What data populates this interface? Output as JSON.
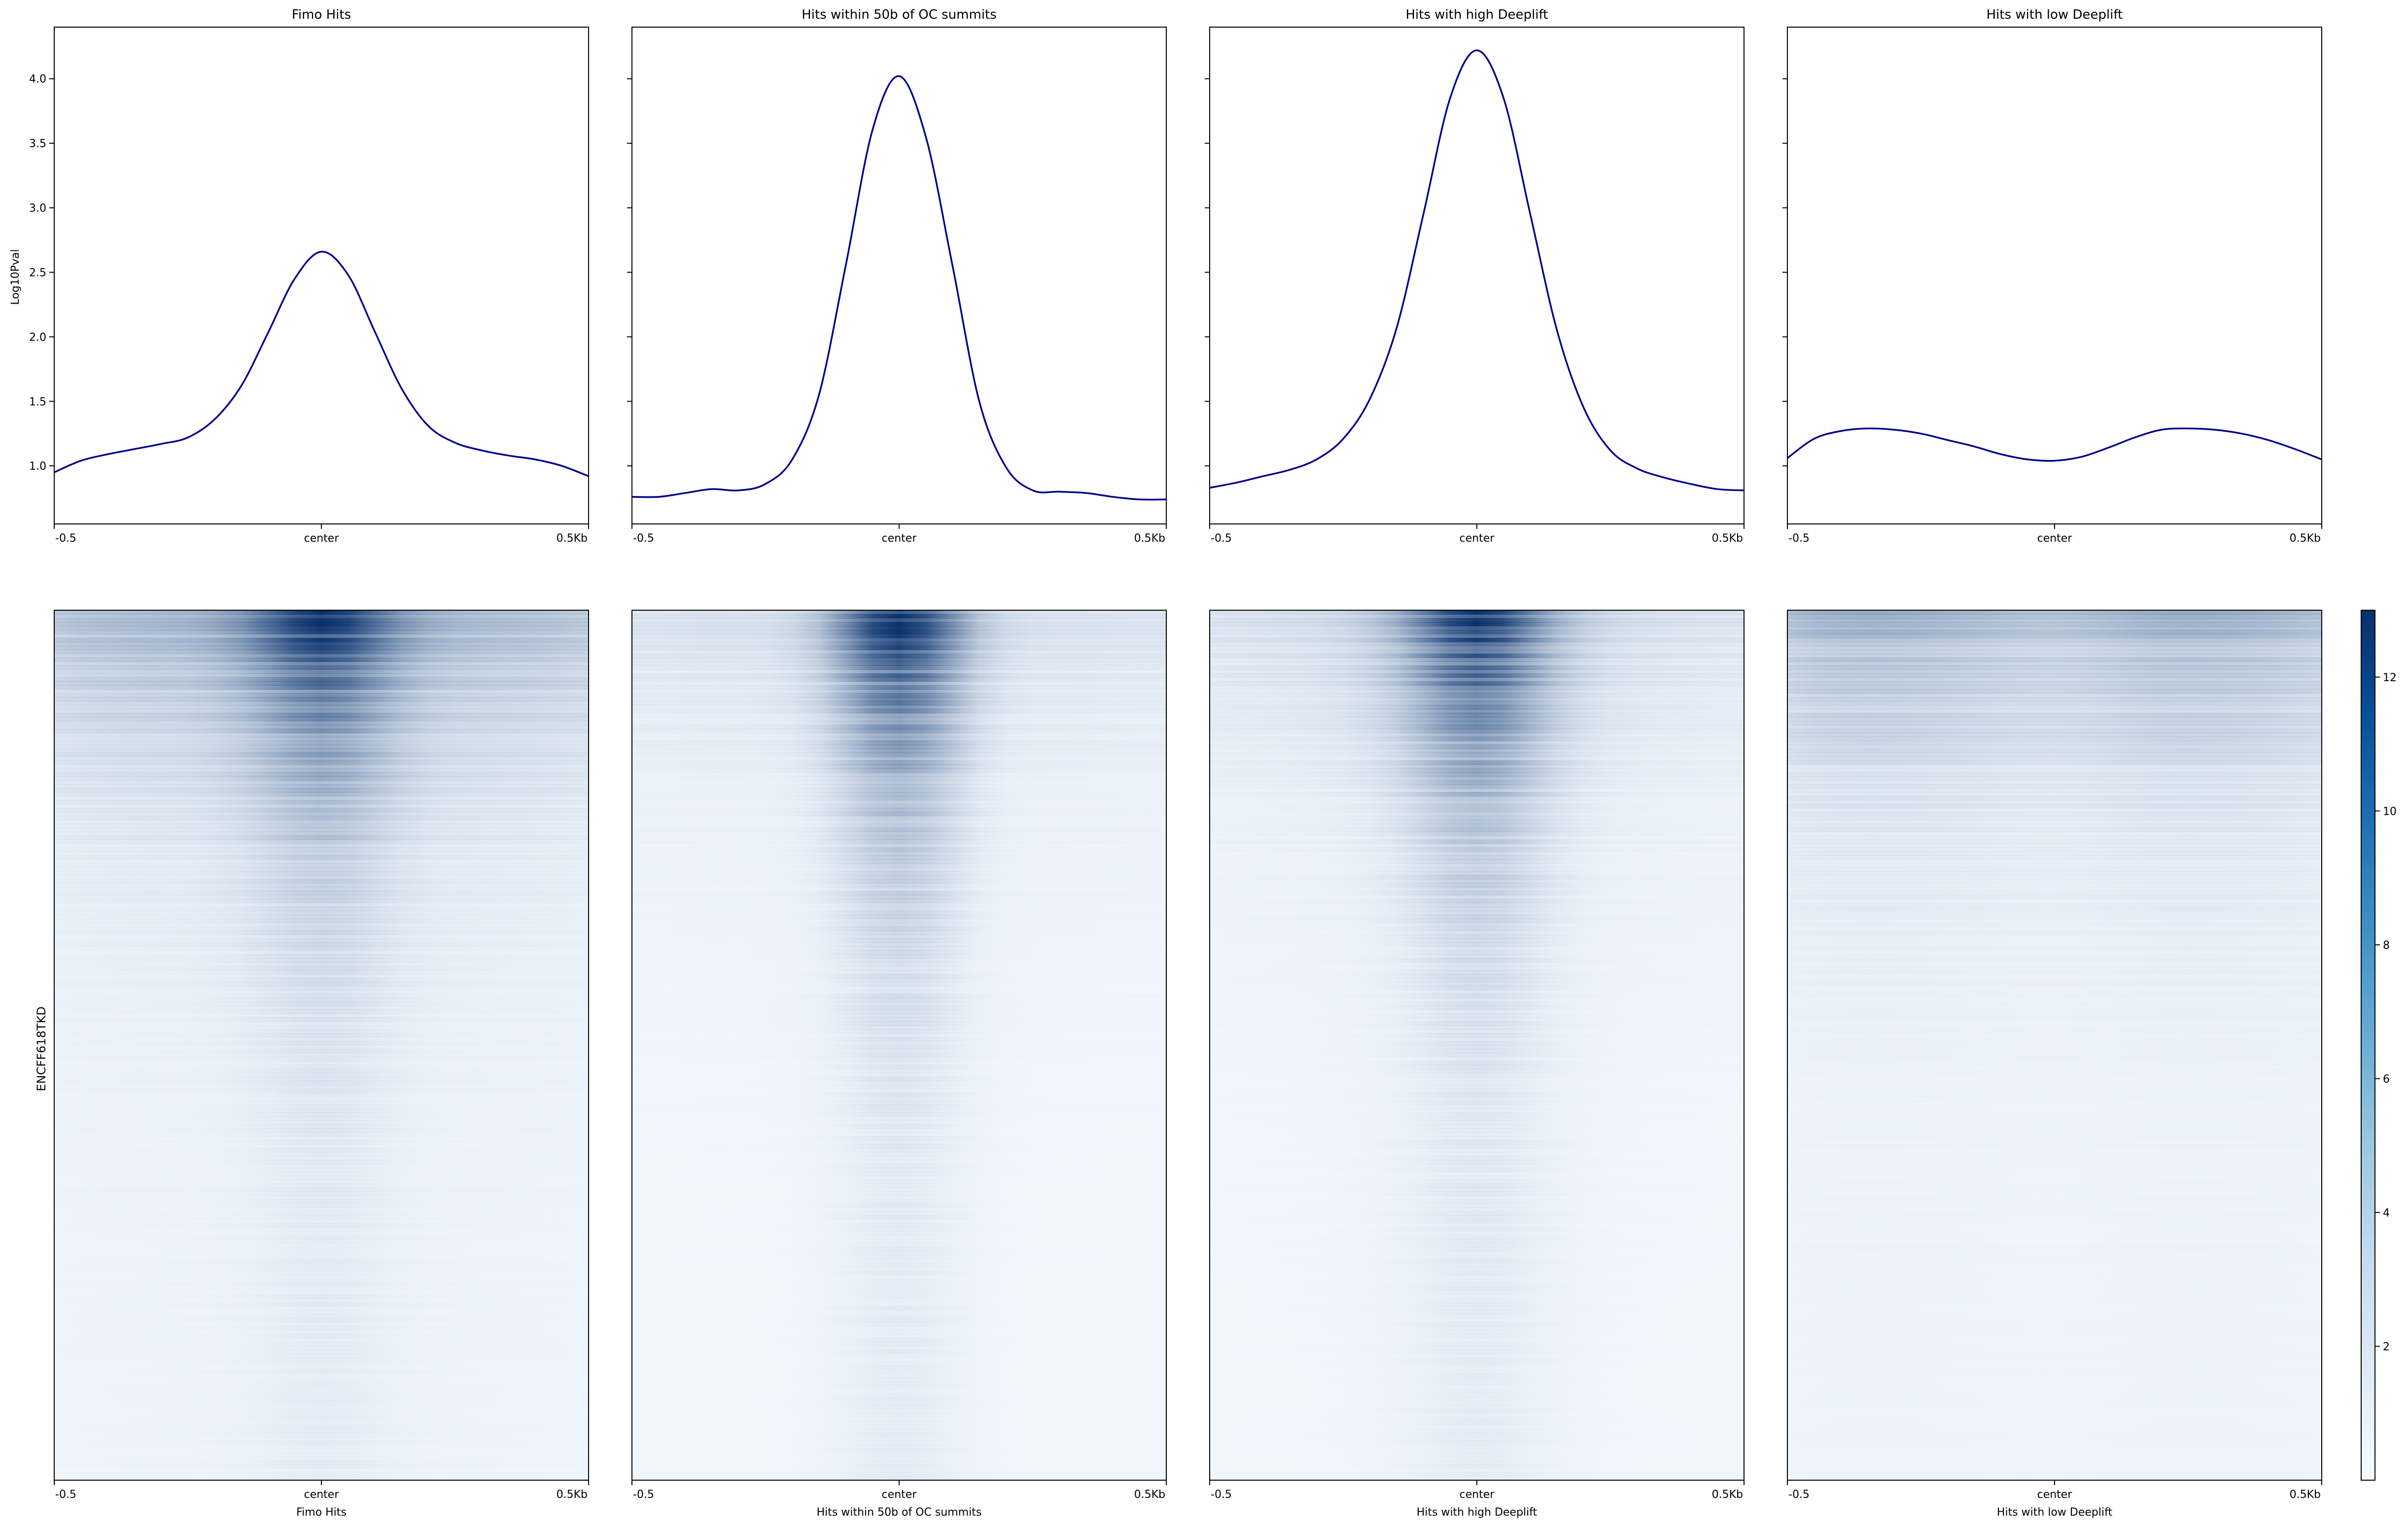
{
  "chart_data": {
    "type": "line",
    "profile_ylabel": "Log10Pval",
    "heatmap_ylabel": "ENCFF618TKD",
    "yticks": [
      1.0,
      1.5,
      2.0,
      2.5,
      3.0,
      3.5,
      4.0
    ],
    "ylim": [
      0.55,
      4.4
    ],
    "x_tick_labels": [
      "-0.5",
      "center",
      "0.5Kb"
    ],
    "colorbar_ticks": [
      2,
      4,
      6,
      8,
      10,
      12
    ],
    "colorbar_range": [
      0,
      13
    ],
    "colormap": [
      "#f7fbff",
      "#deebf7",
      "#c6dbef",
      "#9ecae1",
      "#6baed6",
      "#4292c6",
      "#2171b5",
      "#08519c",
      "#08306b"
    ],
    "line_color": "#00008b",
    "panels": [
      {
        "title": "Fimo Hits",
        "xlabel": "Fimo Hits",
        "x": [
          -0.5,
          -0.45,
          -0.4,
          -0.35,
          -0.3,
          -0.25,
          -0.2,
          -0.15,
          -0.1,
          -0.05,
          0,
          0.05,
          0.1,
          0.15,
          0.2,
          0.25,
          0.3,
          0.35,
          0.4,
          0.45,
          0.5
        ],
        "values": [
          0.95,
          1.04,
          1.09,
          1.13,
          1.17,
          1.22,
          1.36,
          1.62,
          2.03,
          2.45,
          2.66,
          2.48,
          2.04,
          1.6,
          1.31,
          1.18,
          1.12,
          1.08,
          1.05,
          1.0,
          0.92
        ]
      },
      {
        "title": "Hits within 50b of OC summits",
        "xlabel": "Hits within 50b of OC summits",
        "x": [
          -0.5,
          -0.45,
          -0.4,
          -0.35,
          -0.3,
          -0.25,
          -0.2,
          -0.15,
          -0.1,
          -0.05,
          0,
          0.05,
          0.1,
          0.15,
          0.2,
          0.25,
          0.3,
          0.35,
          0.4,
          0.45,
          0.5
        ],
        "values": [
          0.76,
          0.76,
          0.79,
          0.82,
          0.81,
          0.86,
          1.05,
          1.55,
          2.55,
          3.6,
          4.02,
          3.55,
          2.55,
          1.5,
          0.99,
          0.81,
          0.8,
          0.79,
          0.76,
          0.74,
          0.74
        ]
      },
      {
        "title": "Hits with high Deeplift",
        "xlabel": "Hits with high Deeplift",
        "x": [
          -0.5,
          -0.45,
          -0.4,
          -0.35,
          -0.3,
          -0.25,
          -0.2,
          -0.15,
          -0.1,
          -0.05,
          0,
          0.05,
          0.1,
          0.15,
          0.2,
          0.25,
          0.3,
          0.35,
          0.4,
          0.45,
          0.5
        ],
        "values": [
          0.83,
          0.87,
          0.92,
          0.97,
          1.05,
          1.21,
          1.52,
          2.07,
          2.95,
          3.85,
          4.22,
          3.85,
          2.95,
          2.05,
          1.45,
          1.12,
          0.98,
          0.91,
          0.86,
          0.82,
          0.81
        ]
      },
      {
        "title": "Hits with low Deeplift",
        "xlabel": "Hits with low Deeplift",
        "x": [
          -0.5,
          -0.45,
          -0.4,
          -0.35,
          -0.3,
          -0.25,
          -0.2,
          -0.15,
          -0.1,
          -0.05,
          0,
          0.05,
          0.1,
          0.15,
          0.2,
          0.25,
          0.3,
          0.35,
          0.4,
          0.45,
          0.5
        ],
        "values": [
          1.06,
          1.21,
          1.27,
          1.29,
          1.28,
          1.25,
          1.2,
          1.15,
          1.09,
          1.05,
          1.04,
          1.07,
          1.14,
          1.22,
          1.28,
          1.29,
          1.28,
          1.25,
          1.2,
          1.13,
          1.05
        ]
      }
    ]
  }
}
